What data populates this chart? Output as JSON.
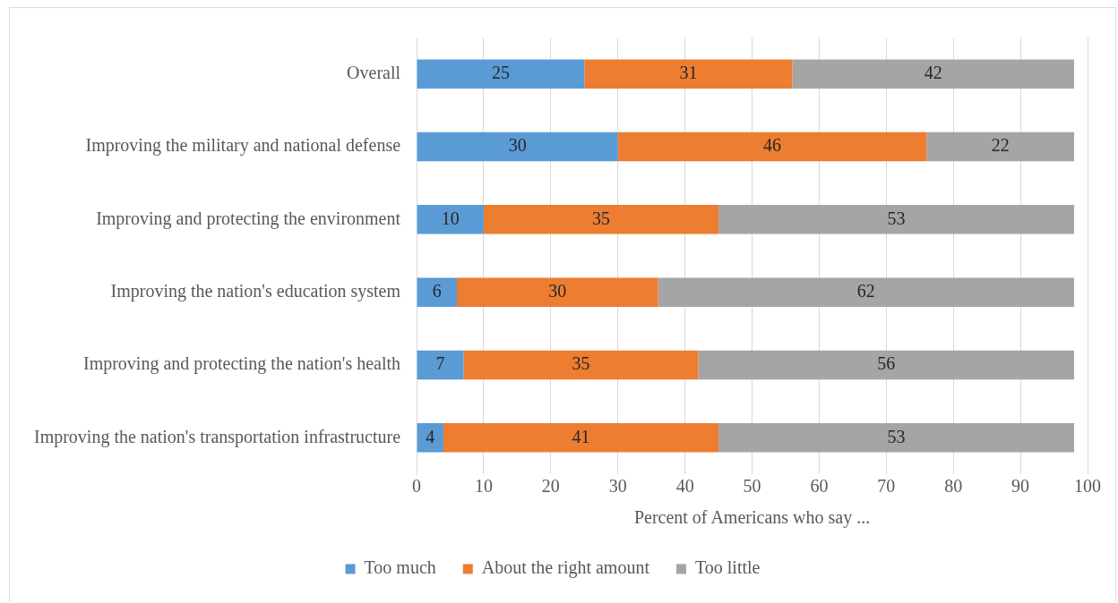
{
  "chart_data": {
    "type": "bar",
    "orientation": "horizontal",
    "stacked": true,
    "xlabel": "Percent of Americans who say ...",
    "categories": [
      "Overall",
      "Improving the military and national defense",
      "Improving and protecting the environment",
      "Improving the nation's education system",
      "Improving and protecting the nation's health",
      "Improving the nation's transportation infrastructure"
    ],
    "series": [
      {
        "name": "Too much",
        "color": "#5b9bd5",
        "values": [
          25,
          30,
          10,
          6,
          7,
          4
        ]
      },
      {
        "name": "About the right amount",
        "color": "#ed7d31",
        "values": [
          31,
          46,
          35,
          30,
          35,
          41
        ]
      },
      {
        "name": "Too little",
        "color": "#a5a5a5",
        "values": [
          42,
          22,
          53,
          62,
          56,
          53
        ]
      }
    ],
    "xlim": [
      0,
      100
    ],
    "xticks": [
      0,
      10,
      20,
      30,
      40,
      50,
      60,
      70,
      80,
      90,
      100
    ],
    "grid": "x",
    "legend": "bottom",
    "data_labels": true
  }
}
